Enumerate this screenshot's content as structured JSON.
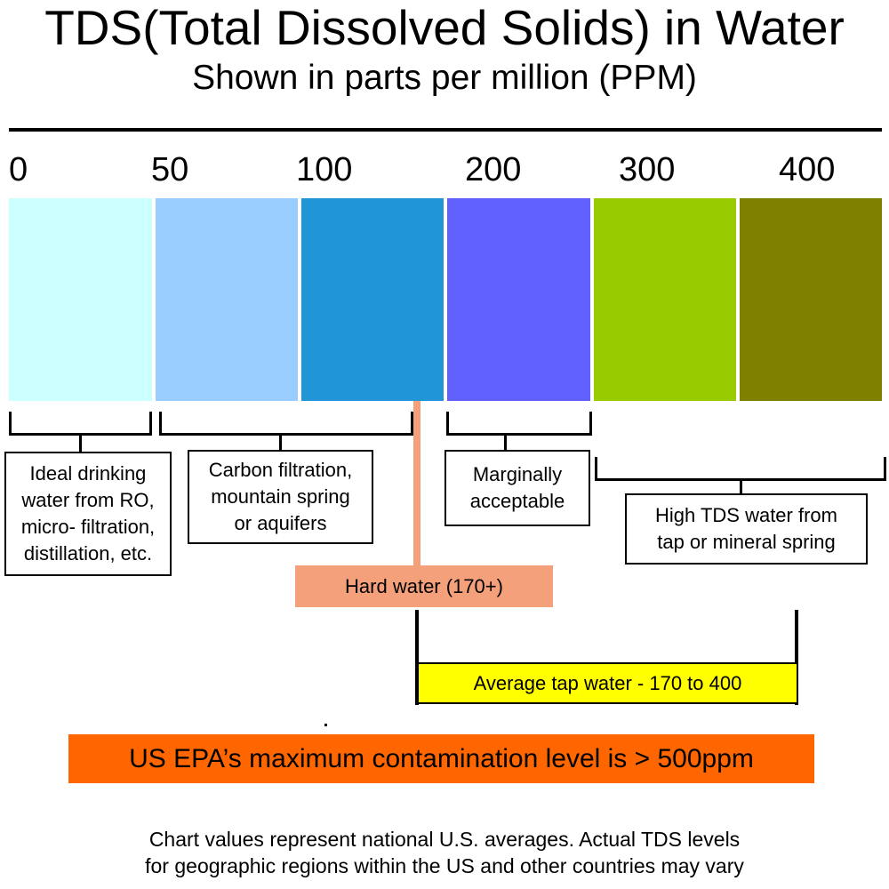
{
  "title": "TDS(Total Dissolved Solids) in Water",
  "subtitle": "Shown in parts per million (PPM)",
  "scale": {
    "ticks": [
      "0",
      "50",
      "100",
      "200",
      "300",
      "400"
    ],
    "bands": [
      {
        "name": "band-1",
        "color": "#ccffff"
      },
      {
        "name": "band-2",
        "color": "#99ccff"
      },
      {
        "name": "band-3",
        "color": "#2096d8"
      },
      {
        "name": "band-4",
        "color": "#6060ff"
      },
      {
        "name": "band-5",
        "color": "#99cc00"
      },
      {
        "name": "band-6",
        "color": "#808000"
      }
    ]
  },
  "categories": {
    "ideal": "Ideal drinking\nwater from RO,\nmicro- filtration,\ndistillation, etc.",
    "carbon": "Carbon filtration,\nmountain spring\nor aquifers",
    "marginal": "Marginally\nacceptable",
    "high": "High TDS water from\ntap or mineral spring"
  },
  "hard_water": {
    "label": "Hard water (170+)",
    "color": "#f4a07a"
  },
  "average_tap": {
    "label": "Average tap water - 170 to 400",
    "color": "#ffff00"
  },
  "epa": {
    "label": "US EPA’s maximum contamination level is > 500ppm",
    "color": "#ff6600"
  },
  "footnote": "Chart values represent national U.S. averages. Actual TDS levels\nfor geographic regions within the US and other countries may vary"
}
